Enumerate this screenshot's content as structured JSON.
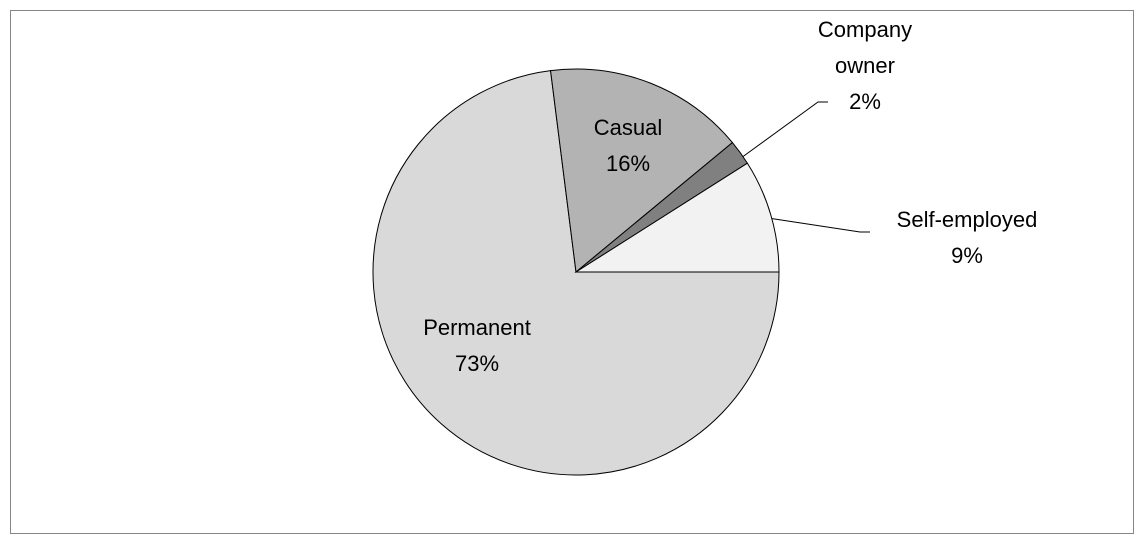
{
  "chart_data": {
    "type": "pie",
    "categories": [
      "Permanent",
      "Casual",
      "Company owner",
      "Self-employed"
    ],
    "values": [
      73,
      16,
      2,
      9
    ],
    "value_labels": [
      "73%",
      "16%",
      "2%",
      "9%"
    ],
    "colors": [
      "#d9d9d9",
      "#b3b3b3",
      "#808080",
      "#f2f2f2"
    ]
  }
}
